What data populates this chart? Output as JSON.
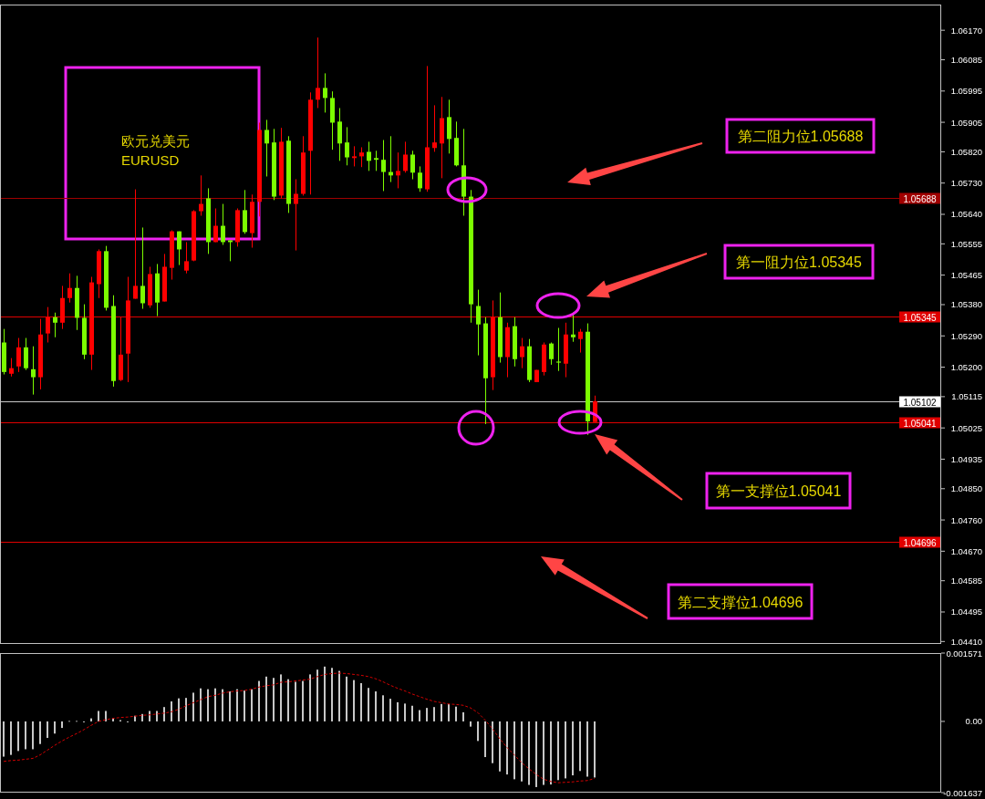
{
  "chart_data": [
    {
      "type": "candlestick",
      "title": "欧元兑美元",
      "subtitle": "EURUSD",
      "categories": [
        null,
        null,
        null,
        null,
        null,
        null,
        null,
        null,
        null,
        null,
        null,
        null,
        null,
        null,
        null,
        null,
        null,
        null,
        null,
        null,
        null,
        null,
        null,
        null,
        null,
        null,
        null,
        null,
        null,
        null,
        null,
        null,
        null,
        null,
        null,
        null,
        null,
        null,
        null,
        null,
        null,
        null,
        null,
        null,
        null,
        null,
        null,
        null,
        null,
        null,
        null,
        null,
        null,
        null,
        null,
        null,
        null,
        null,
        null,
        null,
        null,
        null,
        null,
        null,
        null,
        null,
        null,
        null,
        null,
        null,
        null,
        null,
        null,
        null,
        null,
        null,
        null,
        null,
        null,
        null,
        null,
        null,
        null,
        null,
        null,
        null,
        null,
        null,
        null,
        null,
        null,
        null,
        null,
        null,
        null,
        null,
        null,
        null,
        null,
        null,
        null,
        null,
        null,
        null,
        null,
        null,
        null,
        null,
        null,
        null,
        null,
        null,
        null,
        null,
        null,
        null,
        null,
        null,
        null,
        null,
        null,
        null,
        null,
        null,
        null,
        null,
        null,
        null,
        null
      ],
      "ohlc": [
        [
          1.05271,
          1.0531,
          1.05179,
          1.05186
        ],
        [
          1.05181,
          1.05226,
          1.05173,
          1.05197
        ],
        [
          1.05202,
          1.05284,
          1.05186,
          1.05257
        ],
        [
          1.05257,
          1.05284,
          1.05192,
          1.05197
        ],
        [
          1.05194,
          1.0526,
          1.05121,
          1.05171
        ],
        [
          1.05171,
          1.05339,
          1.05136,
          1.05294
        ],
        [
          1.05297,
          1.05373,
          1.05271,
          1.05344
        ],
        [
          1.05344,
          1.05357,
          1.05286,
          1.05328
        ],
        [
          1.05328,
          1.05434,
          1.0531,
          1.05399
        ],
        [
          1.05399,
          1.0547,
          1.05386,
          1.05428
        ],
        [
          1.05428,
          1.05463,
          1.05307,
          1.05342
        ],
        [
          1.05342,
          1.05381,
          1.05223,
          1.05236
        ],
        [
          1.05236,
          1.0546,
          1.05192,
          1.05444
        ],
        [
          1.05439,
          1.05539,
          1.05399,
          1.05534
        ],
        [
          1.05534,
          1.05549,
          1.05363,
          1.05371
        ],
        [
          1.05376,
          1.05407,
          1.05144,
          1.0516
        ],
        [
          1.05163,
          1.05344,
          1.0516,
          1.05236
        ],
        [
          1.05239,
          1.0546,
          1.05157,
          1.05392
        ],
        [
          1.05397,
          1.05712,
          1.05397,
          1.05434
        ],
        [
          1.05434,
          1.05602,
          1.05368,
          1.05384
        ],
        [
          1.05378,
          1.05489,
          1.05371,
          1.05468
        ],
        [
          1.0547,
          1.05497,
          1.05347,
          1.05386
        ],
        [
          1.05389,
          1.05526,
          1.05389,
          1.05489
        ],
        [
          1.05486,
          1.05594,
          1.05452,
          1.05591
        ],
        [
          1.05591,
          1.05591,
          1.05494,
          1.05539
        ],
        [
          1.05478,
          1.0556,
          1.0547,
          1.05505
        ],
        [
          1.05507,
          1.05652,
          1.05505,
          1.05649
        ],
        [
          1.05649,
          1.05752,
          1.05636,
          1.0567
        ],
        [
          1.05686,
          1.05715,
          1.05526,
          1.0556
        ],
        [
          1.0556,
          1.05657,
          1.0556,
          1.05607
        ],
        [
          1.05607,
          1.0567,
          1.05552,
          1.0556
        ],
        [
          1.05565,
          1.05565,
          1.05505,
          1.0556
        ],
        [
          1.0556,
          1.05657,
          1.05547,
          1.05652
        ],
        [
          1.05652,
          1.0571,
          1.05584,
          1.05589
        ],
        [
          1.05586,
          1.05697,
          1.05544,
          1.05676
        ],
        [
          1.05676,
          1.05904,
          1.05634,
          1.05883
        ],
        [
          1.05883,
          1.05912,
          1.05749,
          1.05844
        ],
        [
          1.05847,
          1.05886,
          1.05681,
          1.05691
        ],
        [
          1.05694,
          1.05889,
          1.05686,
          1.05849
        ],
        [
          1.05852,
          1.05865,
          1.05644,
          1.0567
        ],
        [
          1.0567,
          1.05741,
          1.05536,
          1.05699
        ],
        [
          1.05699,
          1.05865,
          1.05694,
          1.05818
        ],
        [
          1.05823,
          1.05991,
          1.05697,
          1.0597
        ],
        [
          1.0597,
          1.06149,
          1.05946,
          1.06004
        ],
        [
          1.06004,
          1.06046,
          1.05933,
          1.05975
        ],
        [
          1.05975,
          1.05994,
          1.05826,
          1.05904
        ],
        [
          1.05907,
          1.05946,
          1.05794,
          1.05844
        ],
        [
          1.05847,
          1.05891,
          1.05781,
          1.05804
        ],
        [
          1.05802,
          1.05836,
          1.05778,
          1.05807
        ],
        [
          1.05807,
          1.05833,
          1.05776,
          1.05818
        ],
        [
          1.0582,
          1.05849,
          1.05765,
          1.05794
        ],
        [
          1.05802,
          1.05823,
          1.05765,
          1.05797
        ],
        [
          1.05797,
          1.05854,
          1.05707,
          1.05762
        ],
        [
          1.05762,
          1.05865,
          1.05733,
          1.05752
        ],
        [
          1.05752,
          1.05818,
          1.05715,
          1.05765
        ],
        [
          1.05765,
          1.05849,
          1.0576,
          1.05812
        ],
        [
          1.05812,
          1.05823,
          1.05741,
          1.0576
        ],
        [
          1.0576,
          1.05778,
          1.05705,
          1.05715
        ],
        [
          1.05712,
          1.06067,
          1.05705,
          1.05833
        ],
        [
          1.05831,
          1.05954,
          1.0582,
          1.05847
        ],
        [
          1.05844,
          1.05978,
          1.05744,
          1.05917
        ],
        [
          1.0592,
          1.0597,
          1.05815,
          1.05857
        ],
        [
          1.0586,
          1.05907,
          1.05778,
          1.05781
        ],
        [
          1.05781,
          1.05886,
          1.05636,
          1.05691
        ],
        [
          1.05691,
          1.0571,
          1.05328,
          1.05381
        ],
        [
          1.05376,
          1.05423,
          1.05234,
          1.05323
        ],
        [
          1.05326,
          1.05344,
          1.05036,
          1.05168
        ],
        [
          1.05171,
          1.05392,
          1.05134,
          1.05344
        ],
        [
          1.05344,
          1.05415,
          1.05213,
          1.05229
        ],
        [
          1.05229,
          1.05328,
          1.05171,
          1.05315
        ],
        [
          1.05318,
          1.05344,
          1.05202,
          1.05223
        ],
        [
          1.05229,
          1.05284,
          1.05197,
          1.0526
        ],
        [
          1.0526,
          1.05281,
          1.05157,
          1.05163
        ],
        [
          1.05157,
          1.05192,
          1.05157,
          1.05192
        ],
        [
          1.05186,
          1.05271,
          1.05176,
          1.05265
        ],
        [
          1.05268,
          1.05271,
          1.05207,
          1.05223
        ],
        [
          1.05216,
          1.05313,
          1.05189,
          1.05213
        ],
        [
          1.0521,
          1.05328,
          1.05171,
          1.05294
        ],
        [
          1.05294,
          1.05357,
          1.05273,
          1.05286
        ],
        [
          1.05281,
          1.0531,
          1.05242,
          1.05302
        ],
        [
          1.05302,
          1.05326,
          1.05005,
          1.05044
        ],
        [
          1.05042,
          1.05118,
          1.05042,
          1.05102
        ],
        null,
        null,
        null,
        null,
        null,
        null,
        null,
        null,
        null,
        null,
        null,
        null,
        null,
        null,
        null,
        null,
        null,
        null,
        null,
        null,
        null,
        null,
        null,
        null,
        null,
        null,
        null,
        null,
        null,
        null,
        null,
        null,
        null,
        null,
        null,
        null,
        null,
        null,
        null,
        null,
        null,
        null,
        null,
        null,
        null,
        null,
        null
      ],
      "colors": [
        "#7cfc00",
        "#ff0000",
        "#ff0000",
        "#7cfc00",
        "#7cfc00",
        "#ff0000",
        "#ff0000",
        "#7cfc00",
        "#ff0000",
        "#ff0000",
        "#7cfc00",
        "#7cfc00",
        "#ff0000",
        "#ff0000",
        "#7cfc00",
        "#7cfc00",
        "#ff0000",
        "#ff0000",
        "#ff0000",
        "#7cfc00",
        "#ff0000",
        "#7cfc00",
        "#ff0000",
        "#ff0000",
        "#7cfc00",
        "#ff0000",
        "#ff0000",
        "#ff0000",
        "#7cfc00",
        "#ff0000",
        "#7cfc00",
        "#7cfc00",
        "#ff0000",
        "#7cfc00",
        "#ff0000",
        "#ff0000",
        "#7cfc00",
        "#7cfc00",
        "#ff0000",
        "#7cfc00",
        "#ff0000",
        "#ff0000",
        "#ff0000",
        "#ff0000",
        "#7cfc00",
        "#7cfc00",
        "#7cfc00",
        "#7cfc00",
        "#ff0000",
        "#ff0000",
        "#7cfc00",
        "#7cfc00",
        "#7cfc00",
        "#7cfc00",
        "#ff0000",
        "#ff0000",
        "#7cfc00",
        "#7cfc00",
        "#ff0000",
        "#ff0000",
        "#ff0000",
        "#7cfc00",
        "#7cfc00",
        "#7cfc00",
        "#7cfc00",
        "#7cfc00",
        "#7cfc00",
        "#ff0000",
        "#7cfc00",
        "#ff0000",
        "#7cfc00",
        "#ff0000",
        "#7cfc00",
        "#ff0000",
        "#ff0000",
        "#7cfc00",
        "#7cfc00",
        "#ff0000",
        "#7cfc00",
        "#ff0000",
        "#7cfc00",
        "#ff0000",
        null,
        null,
        null,
        null,
        null,
        null,
        null,
        null,
        null,
        null,
        null,
        null,
        null,
        null,
        null,
        null,
        null,
        null,
        null,
        null,
        null,
        null,
        null,
        null,
        null,
        null,
        null,
        null,
        null,
        null,
        null,
        null,
        null,
        null,
        null,
        null,
        null,
        null,
        null,
        null,
        null,
        null,
        null,
        null,
        null,
        null,
        null
      ],
      "ylim": [
        1.04403,
        1.06244
      ],
      "yticks": [
        {
          "value": 1.0617,
          "label": "1.06170"
        },
        {
          "value": 1.06085,
          "label": "1.06085"
        },
        {
          "value": 1.05995,
          "label": "1.05995"
        },
        {
          "value": 1.05905,
          "label": "1.05905"
        },
        {
          "value": 1.0582,
          "label": "1.05820"
        },
        {
          "value": 1.0573,
          "label": "1.05730"
        },
        {
          "value": 1.0564,
          "label": "1.05640"
        },
        {
          "value": 1.05555,
          "label": "1.05555"
        },
        {
          "value": 1.05465,
          "label": "1.05465"
        },
        {
          "value": 1.0538,
          "label": "1.05380"
        },
        {
          "value": 1.0529,
          "label": "1.05290"
        },
        {
          "value": 1.052,
          "label": "1.05200"
        },
        {
          "value": 1.05115,
          "label": "1.05115"
        },
        {
          "value": 1.05025,
          "label": "1.05025"
        },
        {
          "value": 1.04935,
          "label": "1.04935"
        },
        {
          "value": 1.0485,
          "label": "1.04850"
        },
        {
          "value": 1.0476,
          "label": "1.04760"
        },
        {
          "value": 1.0467,
          "label": "1.04670"
        },
        {
          "value": 1.04585,
          "label": "1.04585"
        },
        {
          "value": 1.04495,
          "label": "1.04495"
        },
        {
          "value": 1.0441,
          "label": "1.04410"
        }
      ],
      "ref_lines": [
        {
          "axis": "y",
          "value": 1.05688,
          "label": "1.05688",
          "color": "#a00000"
        },
        {
          "axis": "y",
          "value": 1.05345,
          "label": "1.05345",
          "color": "#e00000"
        },
        {
          "axis": "y",
          "value": 1.05102,
          "label": "1.05102",
          "color": "#c8c8c8"
        },
        {
          "axis": "y",
          "value": 1.05041,
          "label": "1.05041",
          "color": "#e00000"
        },
        {
          "axis": "y",
          "value": 1.04696,
          "label": "1.04696",
          "color": "#e00000"
        }
      ],
      "annotations": [
        "第二阻力位1.05688",
        "第一阻力位1.05345",
        "第一支撑位1.05041",
        "第二支撑位1.04696"
      ],
      "tick_labels": "y"
    },
    {
      "type": "bar",
      "categories": [
        null,
        null,
        null,
        null,
        null,
        null,
        null,
        null,
        null,
        null,
        null,
        null,
        null,
        null,
        null,
        null,
        null,
        null,
        null,
        null,
        null,
        null,
        null,
        null,
        null,
        null,
        null,
        null,
        null,
        null,
        null,
        null,
        null,
        null,
        null,
        null,
        null,
        null,
        null,
        null,
        null,
        null,
        null,
        null,
        null,
        null,
        null,
        null,
        null,
        null,
        null,
        null,
        null,
        null,
        null,
        null,
        null,
        null,
        null,
        null,
        null,
        null,
        null,
        null,
        null,
        null,
        null,
        null,
        null,
        null,
        null,
        null,
        null,
        null,
        null,
        null,
        null,
        null,
        null,
        null,
        null,
        null,
        null,
        null,
        null,
        null,
        null,
        null,
        null,
        null,
        null,
        null,
        null,
        null,
        null,
        null,
        null,
        null,
        null,
        null,
        null,
        null,
        null,
        null,
        null,
        null,
        null,
        null,
        null,
        null,
        null,
        null,
        null,
        null,
        null,
        null,
        null,
        null,
        null,
        null,
        null,
        null,
        null,
        null,
        null,
        null,
        null,
        null,
        null
      ],
      "series": [
        {
          "type": "bar",
          "color": "#c8c8c8",
          "values": [
            -0.00081,
            -0.00077,
            -0.00068,
            -0.00064,
            -0.00064,
            -0.00052,
            -0.00038,
            -0.00028,
            -0.00015,
            1e-05,
            1e-05,
            -2e-05,
            7e-05,
            0.00024,
            0.00024,
            7e-05,
            3e-05,
            -2e-05,
            0.00013,
            0.00017,
            0.00024,
            0.00024,
            0.00033,
            0.00046,
            0.00053,
            0.00054,
            0.00066,
            0.00076,
            0.00074,
            0.00076,
            0.00074,
            0.00069,
            0.00074,
            0.00071,
            0.00074,
            0.00093,
            0.00103,
            0.001,
            0.00108,
            0.00097,
            0.00091,
            0.00093,
            0.00108,
            0.00119,
            0.00126,
            0.00123,
            0.00116,
            0.00103,
            0.00095,
            0.00088,
            0.00077,
            0.00069,
            0.0006,
            0.00052,
            0.00044,
            0.00041,
            0.00036,
            0.00026,
            0.00031,
            0.00033,
            0.0004,
            0.0004,
            0.00034,
            0.00021,
            -0.00012,
            -0.00045,
            -0.00082,
            -0.00096,
            -0.00115,
            -0.00122,
            -0.00133,
            -0.00138,
            -0.00146,
            -0.00151,
            -0.00146,
            -0.00145,
            -0.00135,
            -0.00131,
            -0.00124,
            -0.00114,
            -0.00127,
            -0.00129,
            null,
            null,
            null,
            null,
            null,
            null,
            null,
            null,
            null,
            null,
            null,
            null,
            null,
            null,
            null,
            null,
            null,
            null,
            null,
            null,
            null,
            null,
            null,
            null,
            null,
            null,
            null,
            null,
            null,
            null,
            null,
            null,
            null,
            null,
            null,
            null,
            null,
            null,
            null,
            null,
            null,
            null,
            null,
            null,
            null,
            null,
            null
          ]
        },
        {
          "type": "line",
          "color": "#d00000",
          "line_style": "dashed",
          "values": [
            -0.00092,
            -0.0009,
            -0.00089,
            -0.00087,
            -0.00085,
            -0.00077,
            -0.00066,
            -0.00055,
            -0.00045,
            -0.00036,
            -0.00028,
            -0.00019,
            -9e-05,
            0.0,
            4e-05,
            7e-05,
            9e-05,
            0.0001,
            0.00012,
            0.00014,
            0.00015,
            0.00017,
            0.00019,
            0.00022,
            0.00028,
            0.00036,
            0.00043,
            0.0005,
            0.00057,
            0.0006,
            0.00065,
            0.00068,
            0.0007,
            0.00071,
            0.00074,
            0.00079,
            0.00082,
            0.00084,
            0.0009,
            0.00091,
            0.00093,
            0.00095,
            0.00097,
            0.00103,
            0.00108,
            0.0011,
            0.00111,
            0.0011,
            0.00108,
            0.00106,
            0.00103,
            0.00098,
            0.00091,
            0.00083,
            0.00076,
            0.0007,
            0.00063,
            0.00057,
            0.00051,
            0.00046,
            0.00043,
            0.0004,
            0.00039,
            0.00037,
            0.00031,
            0.0002,
            3e-05,
            -0.00017,
            -0.0004,
            -0.0006,
            -0.00077,
            -0.00095,
            -0.00109,
            -0.00122,
            -0.00133,
            -0.00138,
            -0.00141,
            -0.0014,
            -0.00139,
            -0.00137,
            -0.00136,
            -0.00131,
            null,
            null,
            null,
            null,
            null,
            null,
            null,
            null,
            null,
            null,
            null,
            null,
            null,
            null,
            null,
            null,
            null,
            null,
            null,
            null,
            null,
            null,
            null,
            null,
            null,
            null,
            null,
            null,
            null,
            null,
            null,
            null,
            null,
            null,
            null,
            null,
            null,
            null,
            null,
            null,
            null,
            null,
            null,
            null,
            null,
            null,
            null
          ]
        }
      ],
      "ylim": [
        -0.001637,
        0.001571
      ],
      "yticks": [
        {
          "value": 0.001571,
          "label": "0.001571"
        },
        {
          "value": 0,
          "label": "0.00"
        },
        {
          "value": -0.001637,
          "label": "-0.001637"
        }
      ],
      "tick_labels": "y"
    }
  ]
}
